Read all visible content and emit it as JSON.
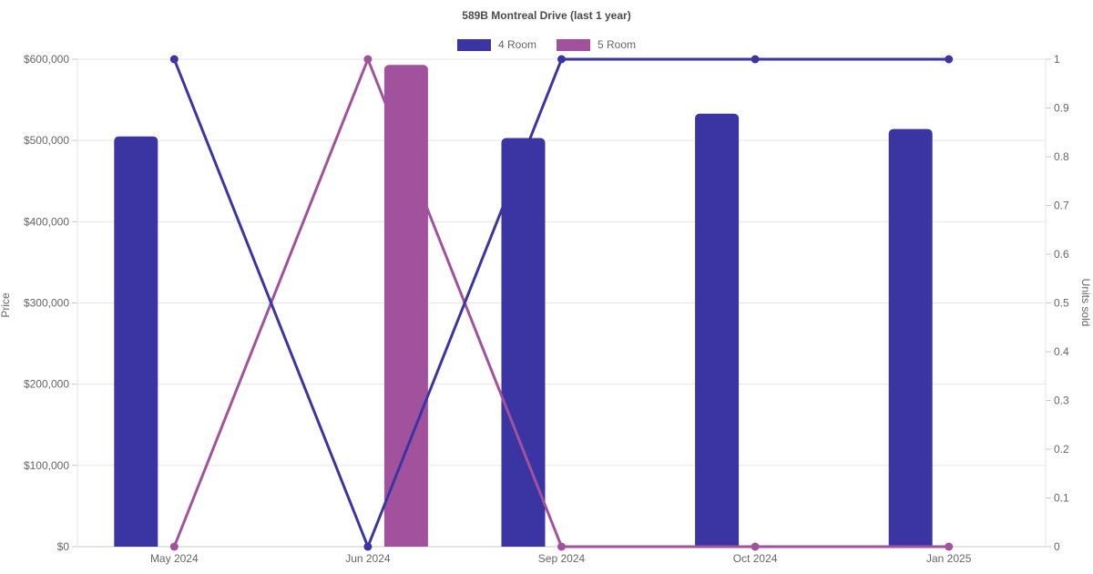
{
  "title": "589B Montreal Drive (last 1 year)",
  "legend": {
    "items": [
      {
        "label": "4 Room",
        "color": "#3b35a3"
      },
      {
        "label": "5 Room",
        "color": "#a2529c"
      }
    ]
  },
  "colors": {
    "four_room": "#3b35a3",
    "five_room": "#a2529c",
    "grid": "#e6e6e6",
    "axis_line": "#c9c9c9",
    "tick_text": "#666666",
    "title_text": "#4a4a4a",
    "background": "#ffffff"
  },
  "chart_data": {
    "type": "combo-bar-line",
    "categories": [
      "May 2024",
      "Jun 2024",
      "Sep 2024",
      "Oct 2024",
      "Jan 2025"
    ],
    "bar_series": [
      {
        "name": "4 Room",
        "color": "#3b35a3",
        "axis": "left",
        "values": [
          505000,
          null,
          503000,
          533000,
          514000
        ]
      },
      {
        "name": "5 Room",
        "color": "#a2529c",
        "axis": "left",
        "values": [
          null,
          593000,
          null,
          null,
          null
        ]
      }
    ],
    "line_series": [
      {
        "name": "4 Room",
        "color": "#3b35a3",
        "axis": "right",
        "values": [
          1,
          0,
          1,
          1,
          1
        ]
      },
      {
        "name": "5 Room",
        "color": "#a2529c",
        "axis": "right",
        "values": [
          0,
          1,
          0,
          0,
          0
        ]
      }
    ],
    "left_axis": {
      "label": "Price",
      "min": 0,
      "max": 600000,
      "tick_step": 100000,
      "tick_prefix": "$"
    },
    "right_axis": {
      "label": "Units sold",
      "min": 0,
      "max": 1,
      "tick_step": 0.1
    },
    "grid": "horizontal-only",
    "legend_position": "top"
  }
}
